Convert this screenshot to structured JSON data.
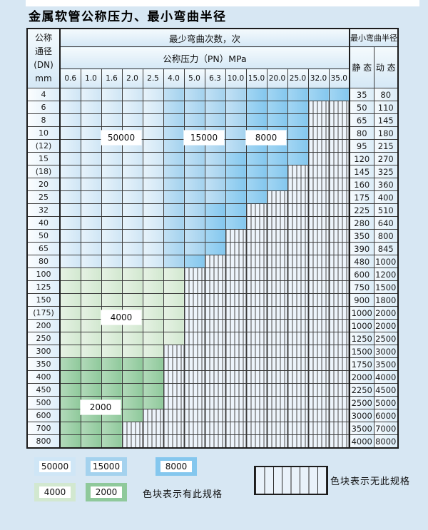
{
  "title": "金属软管公称压力、最小弯曲半径",
  "table": {
    "corner_lines": [
      "公称",
      "通径",
      "(DN)",
      "mm"
    ],
    "bend_times_header": "最少弯曲次数，次",
    "pressure_header": "公称压力（PN）MPa",
    "radius_header": "最小弯曲半径",
    "static_header": "静 态",
    "dynamic_header": "动 态",
    "pressure_columns": [
      "0.6",
      "1.0",
      "1.6",
      "2.0",
      "2.5",
      "4.0",
      "5.0",
      "6.3",
      "10.0",
      "15.0",
      "20.0",
      "25.0",
      "32.0",
      "35.0"
    ],
    "cell_code_cycles": {
      "L": 50000,
      "M": 15000,
      "D": 8000,
      "G": 4000,
      "E": 2000,
      "H": null
    },
    "rows": [
      {
        "dn": "4",
        "static": "35",
        "dynamic": "80",
        "cells": "LLLLLMMMMDDDDD"
      },
      {
        "dn": "6",
        "static": "50",
        "dynamic": "110",
        "cells": "LLLLLMMMMDDDHH"
      },
      {
        "dn": "8",
        "static": "65",
        "dynamic": "145",
        "cells": "LLLLLMMMMDDDHH"
      },
      {
        "dn": "10",
        "static": "80",
        "dynamic": "180",
        "cells": "LLLLLMMMMDDDHH"
      },
      {
        "dn": "(12)",
        "static": "95",
        "dynamic": "215",
        "cells": "LLLLLMMMMDDDHH"
      },
      {
        "dn": "15",
        "static": "120",
        "dynamic": "270",
        "cells": "LLLLLMMMDDDDHH"
      },
      {
        "dn": "(18)",
        "static": "145",
        "dynamic": "325",
        "cells": "LLLLLMMMDDDHHH"
      },
      {
        "dn": "20",
        "static": "160",
        "dynamic": "360",
        "cells": "LLLLLMMMDDDHHH"
      },
      {
        "dn": "25",
        "static": "175",
        "dynamic": "400",
        "cells": "LLLLLMMMDDHHHH"
      },
      {
        "dn": "32",
        "static": "225",
        "dynamic": "510",
        "cells": "LLLLLMMDDHHHHH"
      },
      {
        "dn": "40",
        "static": "280",
        "dynamic": "640",
        "cells": "LLLLLMMDDHHHHH"
      },
      {
        "dn": "50",
        "static": "350",
        "dynamic": "800",
        "cells": "LLLLLMMDHHHHHH"
      },
      {
        "dn": "65",
        "static": "390",
        "dynamic": "845",
        "cells": "LLLLLMMDHHHHHH"
      },
      {
        "dn": "80",
        "static": "480",
        "dynamic": "1000",
        "cells": "LLLLLMDHHHHHHH"
      },
      {
        "dn": "100",
        "static": "600",
        "dynamic": "1200",
        "cells": "GGGGGGHHHHHHHH"
      },
      {
        "dn": "125",
        "static": "750",
        "dynamic": "1500",
        "cells": "GGGGGGHHHHHHHH"
      },
      {
        "dn": "150",
        "static": "900",
        "dynamic": "1800",
        "cells": "GGGGGGHHHHHHHH"
      },
      {
        "dn": "(175)",
        "static": "1000",
        "dynamic": "2000",
        "cells": "GGGGGGHHHHHHHH"
      },
      {
        "dn": "200",
        "static": "1000",
        "dynamic": "2000",
        "cells": "GGGGGGHHHHHHHH"
      },
      {
        "dn": "250",
        "static": "1250",
        "dynamic": "2500",
        "cells": "GGGGGGHHHHHHHH"
      },
      {
        "dn": "300",
        "static": "1500",
        "dynamic": "3000",
        "cells": "GGGGGHHHHHHHHH"
      },
      {
        "dn": "350",
        "static": "1750",
        "dynamic": "3500",
        "cells": "EEEEEHHHHHHHHH"
      },
      {
        "dn": "400",
        "static": "2000",
        "dynamic": "4000",
        "cells": "EEEEEHHHHHHHHH"
      },
      {
        "dn": "450",
        "static": "2250",
        "dynamic": "4500",
        "cells": "EEEEEHHHHHHHHH"
      },
      {
        "dn": "500",
        "static": "2500",
        "dynamic": "5000",
        "cells": "EEEEEHHHHHHHHH"
      },
      {
        "dn": "600",
        "static": "3000",
        "dynamic": "6000",
        "cells": "EEEEHHHHHHHHHH"
      },
      {
        "dn": "700",
        "static": "3500",
        "dynamic": "7000",
        "cells": "EEEHHHHHHHHHHH"
      },
      {
        "dn": "800",
        "static": "4000",
        "dynamic": "8000",
        "cells": "EEEHHHHHHHHHHH"
      }
    ]
  },
  "cycle_labels": [
    {
      "text": "50000",
      "cols": [
        3,
        4
      ],
      "after_row": 4
    },
    {
      "text": "15000",
      "cols": [
        7,
        8
      ],
      "after_row": 4
    },
    {
      "text": "8000",
      "cols": [
        10,
        11
      ],
      "after_row": 4
    },
    {
      "text": "4000",
      "cols": [
        3,
        4
      ],
      "after_row": 18
    },
    {
      "text": "2000",
      "cols": [
        2,
        3
      ],
      "after_row": 25
    }
  ],
  "legend": {
    "swatches": [
      {
        "label": "50000",
        "code": "L"
      },
      {
        "label": "15000",
        "code": "M"
      },
      {
        "label": "8000",
        "code": "D"
      },
      {
        "label": "4000",
        "code": "G"
      },
      {
        "label": "2000",
        "code": "E"
      }
    ],
    "available_note": "色块表示有此规格",
    "unavailable_note": "色块表示无此规格"
  },
  "colors": {
    "page_bg": "#d7e7f3",
    "cycles_50000": "#d0e6f5",
    "cycles_15000": "#a4d2ee",
    "cycles_8000": "#84c7ee",
    "cycles_4000": "#d2e8d0",
    "cycles_2000": "#8fc99b",
    "hatch_bg": "#edf4fb",
    "grid_line": "#3a3a3a"
  }
}
